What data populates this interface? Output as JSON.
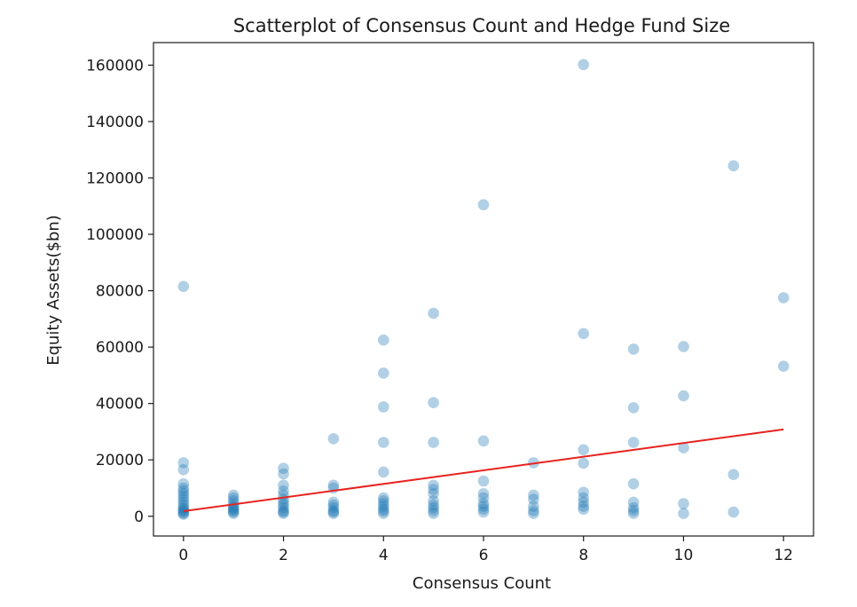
{
  "chart_data": {
    "type": "scatter",
    "title": "Scatterplot of Consensus Count and Hedge Fund Size",
    "xlabel": "Consensus Count",
    "ylabel": "Equity Assets($bn)",
    "xlim": [
      -0.6,
      12.6
    ],
    "ylim": [
      -7000,
      168000
    ],
    "xticks": [
      0,
      2,
      4,
      6,
      8,
      10,
      12
    ],
    "yticks": [
      0,
      20000,
      40000,
      60000,
      80000,
      100000,
      120000,
      140000,
      160000
    ],
    "grid": false,
    "point_color": "#1f77b4",
    "point_opacity": 0.35,
    "line_color": "#e8231f",
    "points": [
      [
        0,
        81500
      ],
      [
        0,
        19000
      ],
      [
        0,
        16500
      ],
      [
        0,
        11500
      ],
      [
        0,
        10000
      ],
      [
        0,
        9000
      ],
      [
        0,
        8000
      ],
      [
        0,
        7000
      ],
      [
        0,
        6000
      ],
      [
        0,
        5000
      ],
      [
        0,
        4000
      ],
      [
        0,
        3000
      ],
      [
        0,
        2500
      ],
      [
        0,
        2000
      ],
      [
        0,
        1500
      ],
      [
        0,
        1000
      ],
      [
        0,
        700
      ],
      [
        1,
        7500
      ],
      [
        1,
        6500
      ],
      [
        1,
        5500
      ],
      [
        1,
        4500
      ],
      [
        1,
        3500
      ],
      [
        1,
        3000
      ],
      [
        1,
        2500
      ],
      [
        1,
        2000
      ],
      [
        1,
        1500
      ],
      [
        1,
        1000
      ],
      [
        2,
        17000
      ],
      [
        2,
        15000
      ],
      [
        2,
        11000
      ],
      [
        2,
        9000
      ],
      [
        2,
        7500
      ],
      [
        2,
        6000
      ],
      [
        2,
        5000
      ],
      [
        2,
        4000
      ],
      [
        2,
        3000
      ],
      [
        2,
        2000
      ],
      [
        2,
        1500
      ],
      [
        2,
        1000
      ],
      [
        3,
        27500
      ],
      [
        3,
        11000
      ],
      [
        3,
        10000
      ],
      [
        3,
        5000
      ],
      [
        3,
        4000
      ],
      [
        3,
        3000
      ],
      [
        3,
        2000
      ],
      [
        3,
        1500
      ],
      [
        3,
        1000
      ],
      [
        4,
        62500
      ],
      [
        4,
        50800
      ],
      [
        4,
        38800
      ],
      [
        4,
        26200
      ],
      [
        4,
        15700
      ],
      [
        4,
        6500
      ],
      [
        4,
        5500
      ],
      [
        4,
        4500
      ],
      [
        4,
        3500
      ],
      [
        4,
        2500
      ],
      [
        4,
        1800
      ],
      [
        4,
        1000
      ],
      [
        5,
        72000
      ],
      [
        5,
        40300
      ],
      [
        5,
        26200
      ],
      [
        5,
        11000
      ],
      [
        5,
        9500
      ],
      [
        5,
        8000
      ],
      [
        5,
        5500
      ],
      [
        5,
        4000
      ],
      [
        5,
        3000
      ],
      [
        5,
        2000
      ],
      [
        5,
        1000
      ],
      [
        6,
        110500
      ],
      [
        6,
        26700
      ],
      [
        6,
        12500
      ],
      [
        6,
        8000
      ],
      [
        6,
        6500
      ],
      [
        6,
        4500
      ],
      [
        6,
        3500
      ],
      [
        6,
        2500
      ],
      [
        6,
        1500
      ],
      [
        7,
        19000
      ],
      [
        7,
        7500
      ],
      [
        7,
        6000
      ],
      [
        7,
        3500
      ],
      [
        7,
        2000
      ],
      [
        7,
        1000
      ],
      [
        8,
        160200
      ],
      [
        8,
        64800
      ],
      [
        8,
        23600
      ],
      [
        8,
        18800
      ],
      [
        8,
        8500
      ],
      [
        8,
        6500
      ],
      [
        8,
        5000
      ],
      [
        8,
        3500
      ],
      [
        8,
        2500
      ],
      [
        9,
        59300
      ],
      [
        9,
        38500
      ],
      [
        9,
        26200
      ],
      [
        9,
        11500
      ],
      [
        9,
        5000
      ],
      [
        9,
        3000
      ],
      [
        9,
        2000
      ],
      [
        9,
        1000
      ],
      [
        10,
        60200
      ],
      [
        10,
        42700
      ],
      [
        10,
        24300
      ],
      [
        10,
        4500
      ],
      [
        10,
        1000
      ],
      [
        11,
        124300
      ],
      [
        11,
        14800
      ],
      [
        11,
        1500
      ],
      [
        12,
        77500
      ],
      [
        12,
        53200
      ]
    ],
    "regression_line": {
      "x": [
        0,
        12
      ],
      "y": [
        1800,
        30800
      ]
    }
  }
}
